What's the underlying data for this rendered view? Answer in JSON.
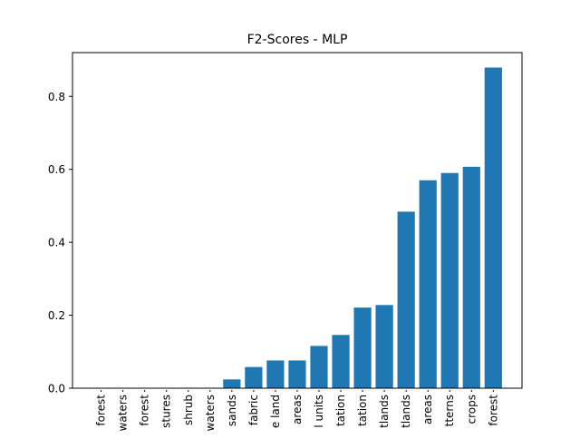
{
  "chart_data": {
    "type": "bar",
    "title": "F2-Scores - MLP",
    "xlabel": "",
    "ylabel": "",
    "ylim": [
      0,
      0.92
    ],
    "yticks": [
      0.0,
      0.2,
      0.4,
      0.6,
      0.8
    ],
    "ytick_labels": [
      "0.0",
      "0.2",
      "0.4",
      "0.6",
      "0.8"
    ],
    "grid": false,
    "bar_color": "#1f77b4",
    "categories": [
      "forest",
      "waters",
      "forest",
      "stures",
      "shrub",
      "waters",
      "sands",
      "fabric",
      "e land",
      "areas",
      "l units",
      "tation",
      "tation",
      "tlands",
      "tlands",
      "areas",
      "tterns",
      "crops",
      "forest"
    ],
    "values": [
      0.0,
      0.0,
      0.0,
      0.0,
      0.0,
      0.0,
      0.024,
      0.058,
      0.076,
      0.076,
      0.116,
      0.146,
      0.221,
      0.228,
      0.484,
      0.57,
      0.59,
      0.607,
      0.879
    ]
  }
}
